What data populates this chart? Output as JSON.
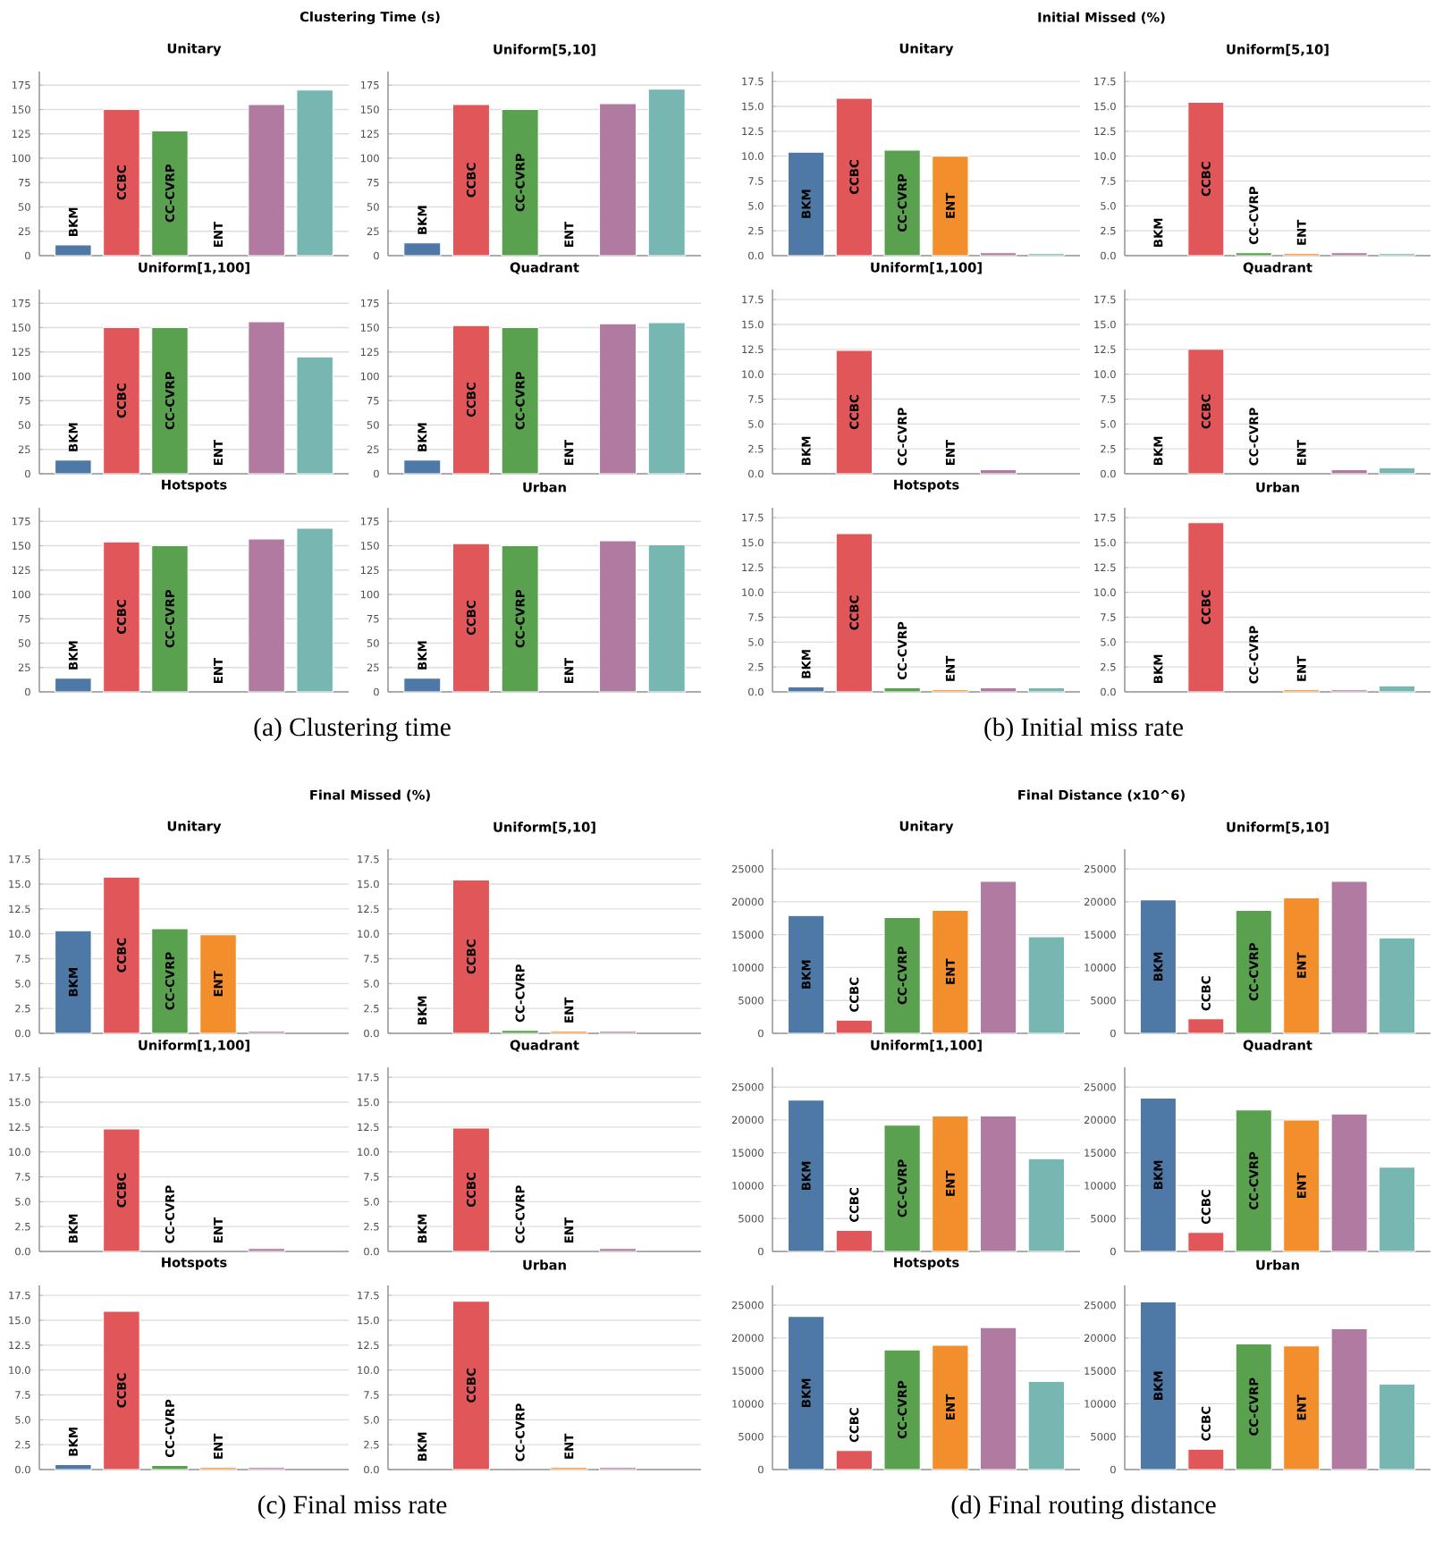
{
  "chart_data": [
    {
      "type": "other",
      "title": "Clustering Time (s)",
      "annotations": [
        "(a) Clustering time"
      ]
    },
    {
      "type": "bar",
      "title": "Unitary",
      "categories": [
        "BKM",
        "CCBC",
        "CC-CVRP",
        "ENT",
        null,
        null
      ],
      "values": [
        11,
        150,
        128,
        null,
        155,
        170
      ],
      "colors": [
        "#4e79a7",
        "#e15759",
        "#59a14f",
        "#f28e2b",
        "#b07aa1",
        "#76b7b2"
      ],
      "ylim": [
        0,
        189
      ],
      "yticks": [
        0,
        25,
        50,
        75,
        100,
        125,
        150,
        175
      ],
      "grid": "y"
    },
    {
      "type": "bar",
      "title": "Uniform[5,10]",
      "categories": [
        "BKM",
        "CCBC",
        "CC-CVRP",
        "ENT",
        null,
        null
      ],
      "values": [
        13,
        155,
        150,
        null,
        156,
        171
      ],
      "colors": [
        "#4e79a7",
        "#e15759",
        "#59a14f",
        "#f28e2b",
        "#b07aa1",
        "#76b7b2"
      ],
      "ylim": [
        0,
        189
      ],
      "yticks": [
        0,
        25,
        50,
        75,
        100,
        125,
        150,
        175
      ],
      "grid": "y"
    },
    {
      "type": "bar",
      "title": "Uniform[1,100]",
      "categories": [
        "BKM",
        "CCBC",
        "CC-CVRP",
        "ENT",
        null,
        null
      ],
      "values": [
        14,
        150,
        150,
        null,
        156,
        120
      ],
      "colors": [
        "#4e79a7",
        "#e15759",
        "#59a14f",
        "#f28e2b",
        "#b07aa1",
        "#76b7b2"
      ],
      "ylim": [
        0,
        189
      ],
      "yticks": [
        0,
        25,
        50,
        75,
        100,
        125,
        150,
        175
      ],
      "grid": "y"
    },
    {
      "type": "bar",
      "title": "Quadrant",
      "categories": [
        "BKM",
        "CCBC",
        "CC-CVRP",
        "ENT",
        null,
        null
      ],
      "values": [
        14,
        152,
        150,
        null,
        154,
        155
      ],
      "colors": [
        "#4e79a7",
        "#e15759",
        "#59a14f",
        "#f28e2b",
        "#b07aa1",
        "#76b7b2"
      ],
      "ylim": [
        0,
        189
      ],
      "yticks": [
        0,
        25,
        50,
        75,
        100,
        125,
        150,
        175
      ],
      "grid": "y"
    },
    {
      "type": "bar",
      "title": "Hotspots",
      "categories": [
        "BKM",
        "CCBC",
        "CC-CVRP",
        "ENT",
        null,
        null
      ],
      "values": [
        14,
        154,
        150,
        null,
        157,
        168
      ],
      "colors": [
        "#4e79a7",
        "#e15759",
        "#59a14f",
        "#f28e2b",
        "#b07aa1",
        "#76b7b2"
      ],
      "ylim": [
        0,
        189
      ],
      "yticks": [
        0,
        25,
        50,
        75,
        100,
        125,
        150,
        175
      ],
      "grid": "y"
    },
    {
      "type": "bar",
      "title": "Urban",
      "categories": [
        "BKM",
        "CCBC",
        "CC-CVRP",
        "ENT",
        null,
        null
      ],
      "values": [
        14,
        152,
        150,
        null,
        155,
        151
      ],
      "colors": [
        "#4e79a7",
        "#e15759",
        "#59a14f",
        "#f28e2b",
        "#b07aa1",
        "#76b7b2"
      ],
      "ylim": [
        0,
        189
      ],
      "yticks": [
        0,
        25,
        50,
        75,
        100,
        125,
        150,
        175
      ],
      "grid": "y"
    },
    {
      "type": "other",
      "title": "Initial Missed (%)",
      "annotations": [
        "(b) Initial miss rate"
      ]
    },
    {
      "type": "bar",
      "title": "Unitary",
      "categories": [
        "BKM",
        "CCBC",
        "CC-CVRP",
        "ENT",
        null,
        null
      ],
      "values": [
        10.4,
        15.8,
        10.6,
        10.0,
        0.3,
        0.2
      ],
      "colors": [
        "#4e79a7",
        "#e15759",
        "#59a14f",
        "#f28e2b",
        "#b07aa1",
        "#76b7b2"
      ],
      "ylim": [
        0,
        18.5
      ],
      "yticks": [
        {
          "value": 0,
          "label": "0.0"
        },
        2.5,
        {
          "value": 5,
          "label": "5.0"
        },
        7.5,
        {
          "value": 10,
          "label": "10.0"
        },
        12.5,
        {
          "value": 15,
          "label": "15.0"
        },
        17.5
      ],
      "grid": "y"
    },
    {
      "type": "bar",
      "title": "Uniform[5,10]",
      "categories": [
        "BKM",
        "CCBC",
        "CC-CVRP",
        "ENT",
        null,
        null
      ],
      "values": [
        null,
        15.4,
        0.3,
        0.2,
        0.3,
        0.2
      ],
      "colors": [
        "#4e79a7",
        "#e15759",
        "#59a14f",
        "#f28e2b",
        "#b07aa1",
        "#76b7b2"
      ],
      "ylim": [
        0,
        18.5
      ],
      "yticks": [
        {
          "value": 0,
          "label": "0.0"
        },
        2.5,
        {
          "value": 5,
          "label": "5.0"
        },
        7.5,
        {
          "value": 10,
          "label": "10.0"
        },
        12.5,
        {
          "value": 15,
          "label": "15.0"
        },
        17.5
      ],
      "grid": "y"
    },
    {
      "type": "bar",
      "title": "Uniform[1,100]",
      "categories": [
        "BKM",
        "CCBC",
        "CC-CVRP",
        "ENT",
        null,
        null
      ],
      "values": [
        null,
        12.4,
        null,
        null,
        0.4,
        null
      ],
      "colors": [
        "#4e79a7",
        "#e15759",
        "#59a14f",
        "#f28e2b",
        "#b07aa1",
        "#76b7b2"
      ],
      "ylim": [
        0,
        18.5
      ],
      "yticks": [
        {
          "value": 0,
          "label": "0.0"
        },
        2.5,
        {
          "value": 5,
          "label": "5.0"
        },
        7.5,
        {
          "value": 10,
          "label": "10.0"
        },
        12.5,
        {
          "value": 15,
          "label": "15.0"
        },
        17.5
      ],
      "grid": "y"
    },
    {
      "type": "bar",
      "title": "Quadrant",
      "categories": [
        "BKM",
        "CCBC",
        "CC-CVRP",
        "ENT",
        null,
        null
      ],
      "values": [
        null,
        12.5,
        null,
        null,
        0.4,
        0.6
      ],
      "colors": [
        "#4e79a7",
        "#e15759",
        "#59a14f",
        "#f28e2b",
        "#b07aa1",
        "#76b7b2"
      ],
      "ylim": [
        0,
        18.5
      ],
      "yticks": [
        {
          "value": 0,
          "label": "0.0"
        },
        2.5,
        {
          "value": 5,
          "label": "5.0"
        },
        7.5,
        {
          "value": 10,
          "label": "10.0"
        },
        12.5,
        {
          "value": 15,
          "label": "15.0"
        },
        17.5
      ],
      "grid": "y"
    },
    {
      "type": "bar",
      "title": "Hotspots",
      "categories": [
        "BKM",
        "CCBC",
        "CC-CVRP",
        "ENT",
        null,
        null
      ],
      "values": [
        0.5,
        15.9,
        0.4,
        0.2,
        0.4,
        0.4
      ],
      "colors": [
        "#4e79a7",
        "#e15759",
        "#59a14f",
        "#f28e2b",
        "#b07aa1",
        "#76b7b2"
      ],
      "ylim": [
        0,
        18.5
      ],
      "yticks": [
        {
          "value": 0,
          "label": "0.0"
        },
        2.5,
        {
          "value": 5,
          "label": "5.0"
        },
        7.5,
        {
          "value": 10,
          "label": "10.0"
        },
        12.5,
        {
          "value": 15,
          "label": "15.0"
        },
        17.5
      ],
      "grid": "y"
    },
    {
      "type": "bar",
      "title": "Urban",
      "categories": [
        "BKM",
        "CCBC",
        "CC-CVRP",
        "ENT",
        null,
        null
      ],
      "values": [
        null,
        17.0,
        null,
        0.2,
        0.2,
        0.6
      ],
      "colors": [
        "#4e79a7",
        "#e15759",
        "#59a14f",
        "#f28e2b",
        "#b07aa1",
        "#76b7b2"
      ],
      "ylim": [
        0,
        18.5
      ],
      "yticks": [
        {
          "value": 0,
          "label": "0.0"
        },
        2.5,
        {
          "value": 5,
          "label": "5.0"
        },
        7.5,
        {
          "value": 10,
          "label": "10.0"
        },
        12.5,
        {
          "value": 15,
          "label": "15.0"
        },
        17.5
      ],
      "grid": "y"
    },
    {
      "type": "other",
      "title": "Final Missed (%)",
      "annotations": [
        "(c) Final miss rate"
      ]
    },
    {
      "type": "bar",
      "title": "Unitary",
      "categories": [
        "BKM",
        "CCBC",
        "CC-CVRP",
        "ENT",
        null,
        null
      ],
      "values": [
        10.3,
        15.7,
        10.5,
        9.9,
        0.2,
        null
      ],
      "colors": [
        "#4e79a7",
        "#e15759",
        "#59a14f",
        "#f28e2b",
        "#b07aa1",
        "#76b7b2"
      ],
      "ylim": [
        0,
        18.5
      ],
      "yticks": [
        {
          "value": 0,
          "label": "0.0"
        },
        2.5,
        {
          "value": 5,
          "label": "5.0"
        },
        7.5,
        {
          "value": 10,
          "label": "10.0"
        },
        12.5,
        {
          "value": 15,
          "label": "15.0"
        },
        17.5
      ],
      "grid": "y"
    },
    {
      "type": "bar",
      "title": "Uniform[5,10]",
      "categories": [
        "BKM",
        "CCBC",
        "CC-CVRP",
        "ENT",
        null,
        null
      ],
      "values": [
        null,
        15.4,
        0.3,
        0.2,
        0.2,
        null
      ],
      "colors": [
        "#4e79a7",
        "#e15759",
        "#59a14f",
        "#f28e2b",
        "#b07aa1",
        "#76b7b2"
      ],
      "ylim": [
        0,
        18.5
      ],
      "yticks": [
        {
          "value": 0,
          "label": "0.0"
        },
        2.5,
        {
          "value": 5,
          "label": "5.0"
        },
        7.5,
        {
          "value": 10,
          "label": "10.0"
        },
        12.5,
        {
          "value": 15,
          "label": "15.0"
        },
        17.5
      ],
      "grid": "y"
    },
    {
      "type": "bar",
      "title": "Uniform[1,100]",
      "categories": [
        "BKM",
        "CCBC",
        "CC-CVRP",
        "ENT",
        null,
        null
      ],
      "values": [
        null,
        12.3,
        null,
        null,
        0.3,
        null
      ],
      "colors": [
        "#4e79a7",
        "#e15759",
        "#59a14f",
        "#f28e2b",
        "#b07aa1",
        "#76b7b2"
      ],
      "ylim": [
        0,
        18.5
      ],
      "yticks": [
        {
          "value": 0,
          "label": "0.0"
        },
        2.5,
        {
          "value": 5,
          "label": "5.0"
        },
        7.5,
        {
          "value": 10,
          "label": "10.0"
        },
        12.5,
        {
          "value": 15,
          "label": "15.0"
        },
        17.5
      ],
      "grid": "y"
    },
    {
      "type": "bar",
      "title": "Quadrant",
      "categories": [
        "BKM",
        "CCBC",
        "CC-CVRP",
        "ENT",
        null,
        null
      ],
      "values": [
        null,
        12.4,
        null,
        null,
        0.3,
        null
      ],
      "colors": [
        "#4e79a7",
        "#e15759",
        "#59a14f",
        "#f28e2b",
        "#b07aa1",
        "#76b7b2"
      ],
      "ylim": [
        0,
        18.5
      ],
      "yticks": [
        {
          "value": 0,
          "label": "0.0"
        },
        2.5,
        {
          "value": 5,
          "label": "5.0"
        },
        7.5,
        {
          "value": 10,
          "label": "10.0"
        },
        12.5,
        {
          "value": 15,
          "label": "15.0"
        },
        17.5
      ],
      "grid": "y"
    },
    {
      "type": "bar",
      "title": "Hotspots",
      "categories": [
        "BKM",
        "CCBC",
        "CC-CVRP",
        "ENT",
        null,
        null
      ],
      "values": [
        0.5,
        15.9,
        0.4,
        0.2,
        0.2,
        null
      ],
      "colors": [
        "#4e79a7",
        "#e15759",
        "#59a14f",
        "#f28e2b",
        "#b07aa1",
        "#76b7b2"
      ],
      "ylim": [
        0,
        18.5
      ],
      "yticks": [
        {
          "value": 0,
          "label": "0.0"
        },
        2.5,
        {
          "value": 5,
          "label": "5.0"
        },
        7.5,
        {
          "value": 10,
          "label": "10.0"
        },
        12.5,
        {
          "value": 15,
          "label": "15.0"
        },
        17.5
      ],
      "grid": "y"
    },
    {
      "type": "bar",
      "title": "Urban",
      "categories": [
        "BKM",
        "CCBC",
        "CC-CVRP",
        "ENT",
        null,
        null
      ],
      "values": [
        null,
        16.9,
        null,
        0.2,
        0.2,
        null
      ],
      "colors": [
        "#4e79a7",
        "#e15759",
        "#59a14f",
        "#f28e2b",
        "#b07aa1",
        "#76b7b2"
      ],
      "ylim": [
        0,
        18.5
      ],
      "yticks": [
        {
          "value": 0,
          "label": "0.0"
        },
        2.5,
        {
          "value": 5,
          "label": "5.0"
        },
        7.5,
        {
          "value": 10,
          "label": "10.0"
        },
        12.5,
        {
          "value": 15,
          "label": "15.0"
        },
        17.5
      ],
      "grid": "y"
    },
    {
      "type": "other",
      "title": "Final Distance (x10^6)",
      "annotations": [
        "(d) Final routing distance"
      ]
    },
    {
      "type": "bar",
      "title": "Unitary",
      "categories": [
        "BKM",
        "CCBC",
        "CC-CVRP",
        "ENT",
        null,
        null
      ],
      "values": [
        17900,
        2000,
        17600,
        18700,
        23100,
        14700
      ],
      "colors": [
        "#4e79a7",
        "#e15759",
        "#59a14f",
        "#f28e2b",
        "#b07aa1",
        "#76b7b2"
      ],
      "ylim": [
        0,
        28000
      ],
      "yticks": [
        0,
        5000,
        10000,
        15000,
        20000,
        25000
      ],
      "grid": "y"
    },
    {
      "type": "bar",
      "title": "Uniform[5,10]",
      "categories": [
        "BKM",
        "CCBC",
        "CC-CVRP",
        "ENT",
        null,
        null
      ],
      "values": [
        20300,
        2200,
        18700,
        20600,
        23100,
        14500
      ],
      "colors": [
        "#4e79a7",
        "#e15759",
        "#59a14f",
        "#f28e2b",
        "#b07aa1",
        "#76b7b2"
      ],
      "ylim": [
        0,
        28000
      ],
      "yticks": [
        0,
        5000,
        10000,
        15000,
        20000,
        25000
      ],
      "grid": "y"
    },
    {
      "type": "bar",
      "title": "Uniform[1,100]",
      "categories": [
        "BKM",
        "CCBC",
        "CC-CVRP",
        "ENT",
        null,
        null
      ],
      "values": [
        23000,
        3200,
        19200,
        20600,
        20600,
        14100
      ],
      "colors": [
        "#4e79a7",
        "#e15759",
        "#59a14f",
        "#f28e2b",
        "#b07aa1",
        "#76b7b2"
      ],
      "ylim": [
        0,
        28000
      ],
      "yticks": [
        0,
        5000,
        10000,
        15000,
        20000,
        25000
      ],
      "grid": "y"
    },
    {
      "type": "bar",
      "title": "Quadrant",
      "categories": [
        "BKM",
        "CCBC",
        "CC-CVRP",
        "ENT",
        null,
        null
      ],
      "values": [
        23300,
        2900,
        21500,
        20000,
        20900,
        12800
      ],
      "colors": [
        "#4e79a7",
        "#e15759",
        "#59a14f",
        "#f28e2b",
        "#b07aa1",
        "#76b7b2"
      ],
      "ylim": [
        0,
        28000
      ],
      "yticks": [
        0,
        5000,
        10000,
        15000,
        20000,
        25000
      ],
      "grid": "y"
    },
    {
      "type": "bar",
      "title": "Hotspots",
      "categories": [
        "BKM",
        "CCBC",
        "CC-CVRP",
        "ENT",
        null,
        null
      ],
      "values": [
        23300,
        2900,
        18200,
        18900,
        21600,
        13400
      ],
      "colors": [
        "#4e79a7",
        "#e15759",
        "#59a14f",
        "#f28e2b",
        "#b07aa1",
        "#76b7b2"
      ],
      "ylim": [
        0,
        28000
      ],
      "yticks": [
        0,
        5000,
        10000,
        15000,
        20000,
        25000
      ],
      "grid": "y"
    },
    {
      "type": "bar",
      "title": "Urban",
      "categories": [
        "BKM",
        "CCBC",
        "CC-CVRP",
        "ENT",
        null,
        null
      ],
      "values": [
        25500,
        3100,
        19100,
        18800,
        21400,
        13000
      ],
      "colors": [
        "#4e79a7",
        "#e15759",
        "#59a14f",
        "#f28e2b",
        "#b07aa1",
        "#76b7b2"
      ],
      "ylim": [
        0,
        28000
      ],
      "yticks": [
        0,
        5000,
        10000,
        15000,
        20000,
        25000
      ],
      "grid": "y"
    }
  ]
}
